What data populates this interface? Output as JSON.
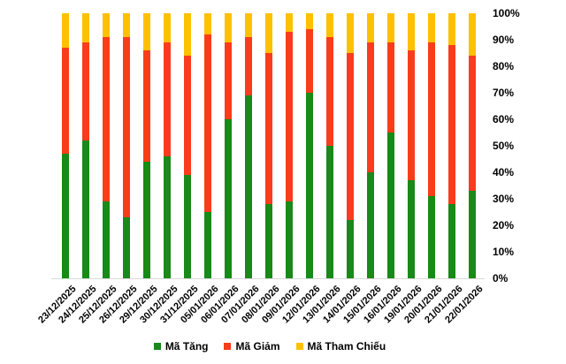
{
  "chart_data": {
    "type": "bar",
    "stacked": true,
    "stacking": "percent",
    "title": "",
    "xlabel": "",
    "ylabel": "",
    "categories": [
      "23/12/2025",
      "24/12/2025",
      "25/12/2025",
      "26/12/2025",
      "29/12/2025",
      "30/12/2025",
      "31/12/2025",
      "05/01/2026",
      "06/01/2026",
      "07/01/2026",
      "08/01/2026",
      "09/01/2026",
      "12/01/2026",
      "13/01/2026",
      "14/01/2026",
      "15/01/2026",
      "16/01/2026",
      "19/01/2026",
      "20/01/2026",
      "21/01/2026",
      "22/01/2026"
    ],
    "series": [
      {
        "name": "Mã Tăng",
        "color": "#178A17",
        "values": [
          47,
          52,
          29,
          23,
          44,
          46,
          39,
          25,
          60,
          69,
          28,
          29,
          70,
          50,
          22,
          40,
          55,
          37,
          31,
          28,
          33
        ]
      },
      {
        "name": "Mã Giảm",
        "color": "#F93D1B",
        "values": [
          40,
          37,
          62,
          68,
          42,
          43,
          45,
          67,
          29,
          22,
          57,
          64,
          24,
          41,
          63,
          49,
          34,
          49,
          58,
          60,
          51
        ]
      },
      {
        "name": "Mã Tham Chiếu",
        "color": "#FFC000",
        "values": [
          13,
          11,
          9,
          9,
          14,
          11,
          16,
          8,
          11,
          9,
          15,
          7,
          6,
          9,
          15,
          11,
          11,
          14,
          11,
          12,
          16
        ]
      }
    ],
    "y_ticks": [
      "100%",
      "90%",
      "80%",
      "70%",
      "60%",
      "50%",
      "40%",
      "30%",
      "20%",
      "10%",
      "0%"
    ],
    "ylim": [
      0,
      100
    ],
    "y_axis_side": "right",
    "grid": false,
    "legend_position": "bottom"
  },
  "colors": {
    "background": "#FFFFFF",
    "axis_line": "#D9D9D9",
    "text": "#000000"
  }
}
